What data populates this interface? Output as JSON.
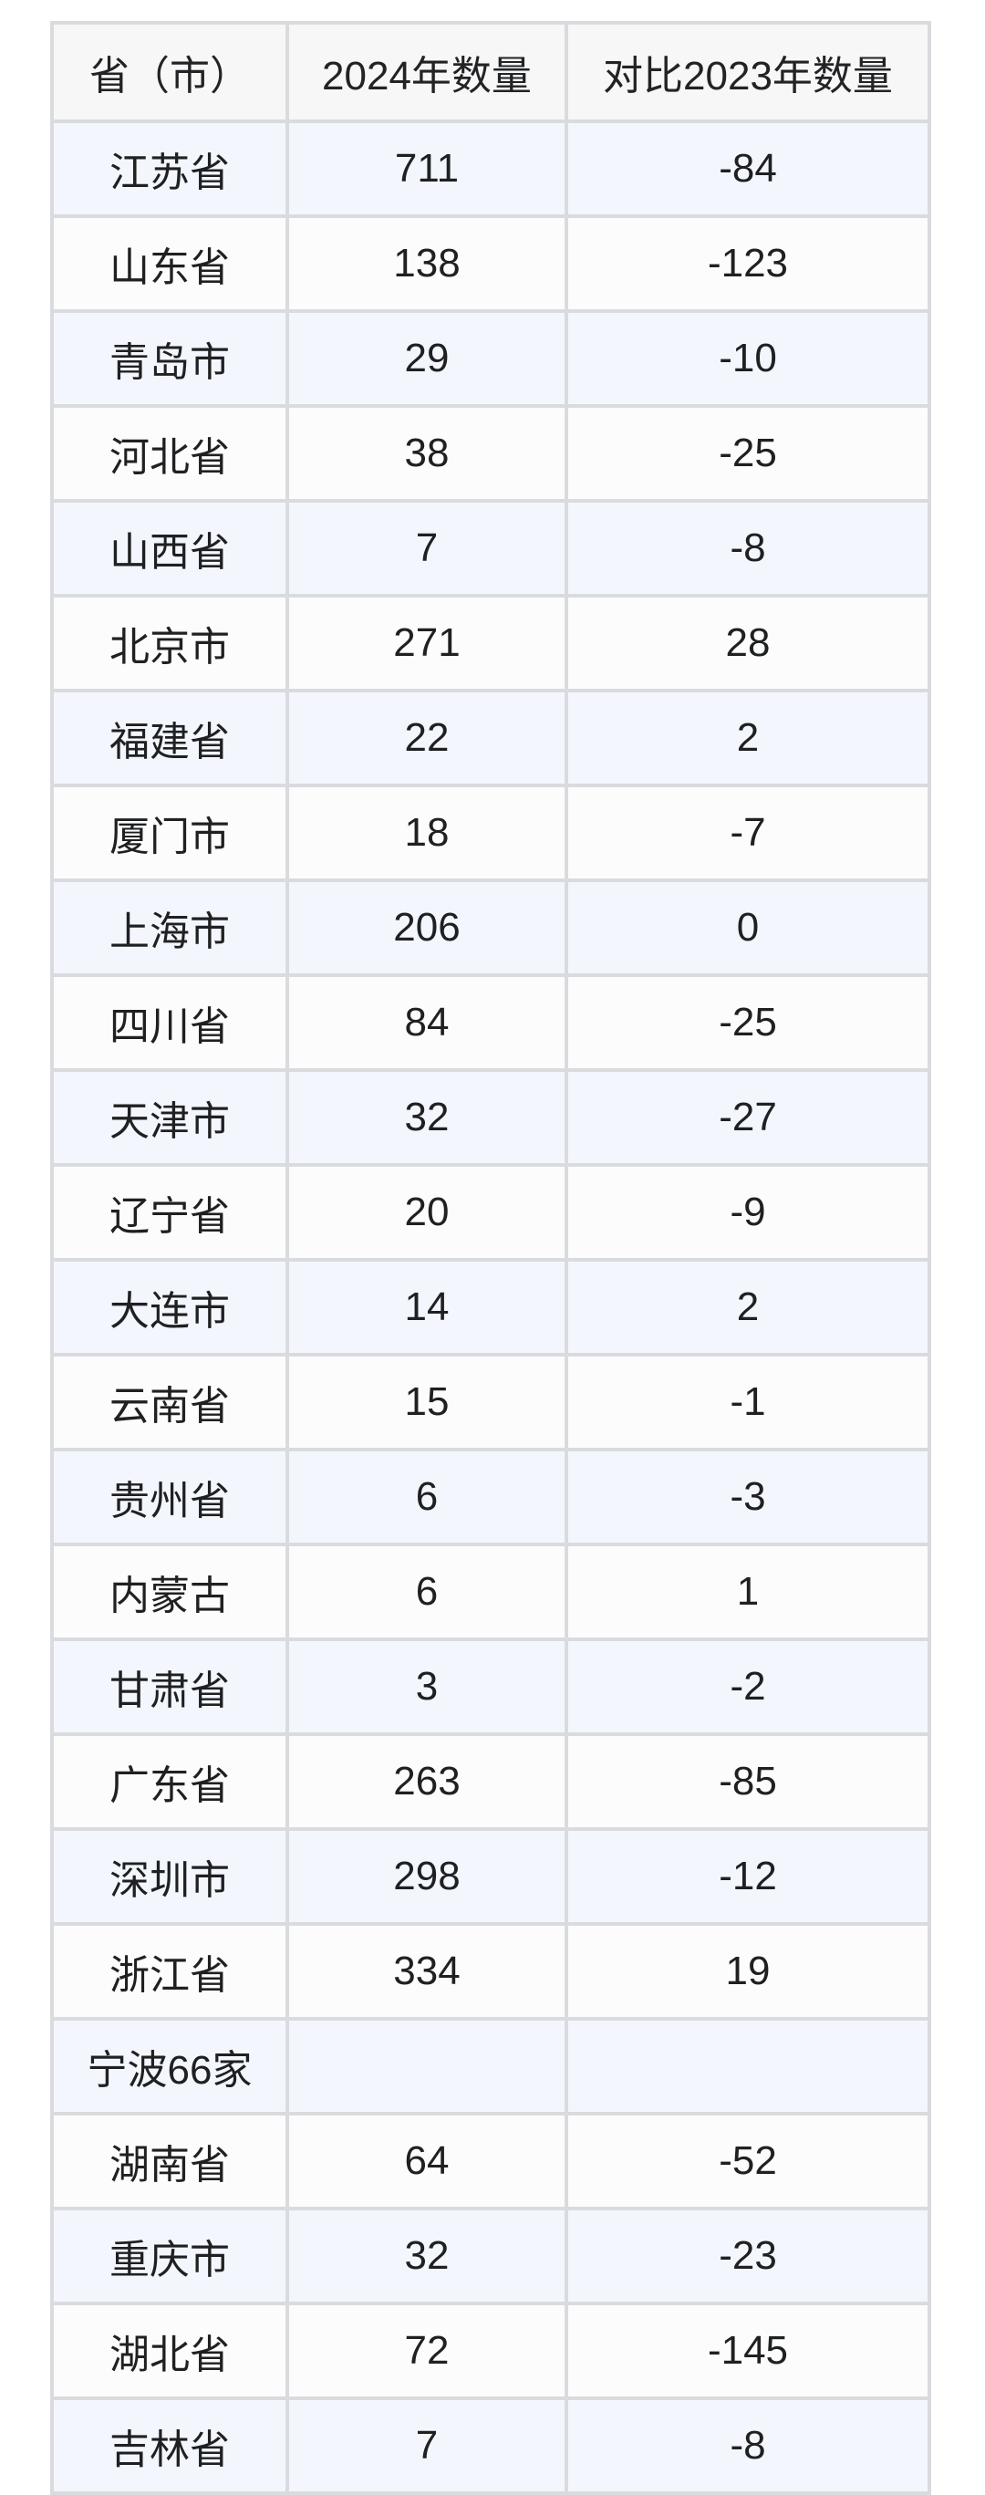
{
  "colors": {
    "page_background": "#ffffff",
    "header_background": "#f7f7f8",
    "stripe_blue": "#f3f7fd",
    "stripe_white": "#fcfcfc",
    "border": "#d9dbde",
    "text": "#222325"
  },
  "chart_data": {
    "type": "table",
    "columns": [
      "省（市）",
      "2024年数量",
      "对比2023年数量"
    ],
    "rows": [
      [
        "江苏省",
        711,
        -84
      ],
      [
        "山东省",
        138,
        -123
      ],
      [
        "青岛市",
        29,
        -10
      ],
      [
        "河北省",
        38,
        -25
      ],
      [
        "山西省",
        7,
        -8
      ],
      [
        "北京市",
        271,
        28
      ],
      [
        "福建省",
        22,
        2
      ],
      [
        "厦门市",
        18,
        -7
      ],
      [
        "上海市",
        206,
        0
      ],
      [
        "四川省",
        84,
        -25
      ],
      [
        "天津市",
        32,
        -27
      ],
      [
        "辽宁省",
        20,
        -9
      ],
      [
        "大连市",
        14,
        2
      ],
      [
        "云南省",
        15,
        -1
      ],
      [
        "贵州省",
        6,
        -3
      ],
      [
        "内蒙古",
        6,
        1
      ],
      [
        "甘肃省",
        3,
        -2
      ],
      [
        "广东省",
        263,
        -85
      ],
      [
        "深圳市",
        298,
        -12
      ],
      [
        "浙江省",
        334,
        19
      ],
      [
        "宁波66家",
        null,
        null
      ],
      [
        "湖南省",
        64,
        -52
      ],
      [
        "重庆市",
        32,
        -23
      ],
      [
        "湖北省",
        72,
        -145
      ],
      [
        "吉林省",
        7,
        -8
      ]
    ],
    "layout": {
      "grid": true,
      "zebra_striping": true,
      "first_data_row_color": "blue",
      "column_alignment": [
        "center",
        "center",
        "center"
      ]
    }
  }
}
